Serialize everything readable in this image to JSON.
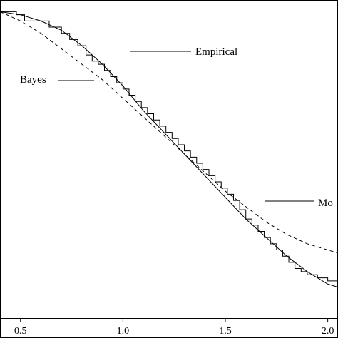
{
  "chart_data": {
    "type": "line",
    "xlim": [
      0.4,
      2.05
    ],
    "ylim": [
      0.0,
      1.0
    ],
    "x_ticks": [
      "0.5",
      "1.0",
      "1.5",
      "2.0"
    ],
    "grid": false,
    "annotations": [
      "Empirical",
      "Bayes",
      "Mo"
    ],
    "series": [
      {
        "style": "solid",
        "x": [
          0.4,
          0.5,
          0.6,
          0.7,
          0.8,
          0.9,
          1.0,
          1.1,
          1.2,
          1.3,
          1.4,
          1.5,
          1.6,
          1.7,
          1.8,
          1.9,
          2.0,
          2.05
        ],
        "y": [
          0.99,
          0.98,
          0.96,
          0.93,
          0.88,
          0.82,
          0.75,
          0.67,
          0.6,
          0.53,
          0.46,
          0.39,
          0.32,
          0.26,
          0.2,
          0.15,
          0.11,
          0.1
        ]
      },
      {
        "style": "dashed",
        "x": [
          0.4,
          0.5,
          0.6,
          0.7,
          0.8,
          0.9,
          1.0,
          1.1,
          1.2,
          1.3,
          1.4,
          1.5,
          1.6,
          1.7,
          1.8,
          1.9,
          2.0,
          2.05
        ],
        "y": [
          0.99,
          0.96,
          0.92,
          0.87,
          0.82,
          0.77,
          0.71,
          0.65,
          0.59,
          0.53,
          0.47,
          0.41,
          0.36,
          0.31,
          0.27,
          0.24,
          0.22,
          0.21
        ]
      },
      {
        "style": "step",
        "x": [
          0.4,
          0.48,
          0.52,
          0.6,
          0.64,
          0.7,
          0.74,
          0.78,
          0.82,
          0.85,
          0.88,
          0.91,
          0.94,
          0.97,
          1.0,
          1.03,
          1.06,
          1.09,
          1.12,
          1.15,
          1.18,
          1.21,
          1.24,
          1.27,
          1.3,
          1.33,
          1.36,
          1.39,
          1.42,
          1.45,
          1.48,
          1.51,
          1.54,
          1.57,
          1.6,
          1.63,
          1.66,
          1.69,
          1.72,
          1.75,
          1.78,
          1.81,
          1.84,
          1.87,
          1.9,
          1.95,
          2.0,
          2.05
        ],
        "y": [
          0.99,
          0.98,
          0.96,
          0.96,
          0.94,
          0.92,
          0.9,
          0.88,
          0.85,
          0.83,
          0.82,
          0.8,
          0.78,
          0.76,
          0.74,
          0.72,
          0.7,
          0.68,
          0.66,
          0.64,
          0.62,
          0.6,
          0.58,
          0.56,
          0.54,
          0.52,
          0.5,
          0.48,
          0.46,
          0.44,
          0.42,
          0.4,
          0.38,
          0.35,
          0.32,
          0.3,
          0.28,
          0.26,
          0.24,
          0.22,
          0.2,
          0.18,
          0.16,
          0.15,
          0.14,
          0.13,
          0.12,
          0.12
        ]
      }
    ]
  }
}
